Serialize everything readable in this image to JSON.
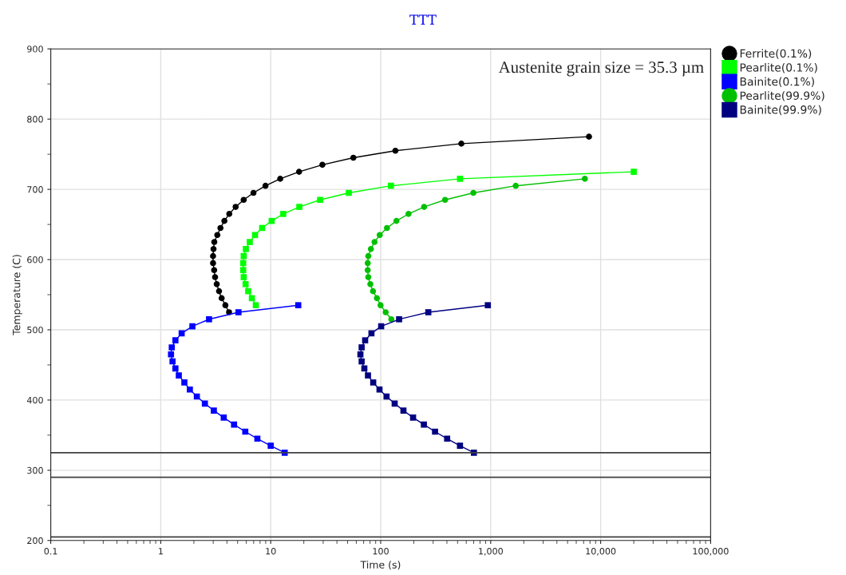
{
  "chart_data": {
    "type": "line",
    "title": "TTT",
    "xlabel": "Time (s)",
    "ylabel": "Temperature (C)",
    "annotations": [
      "Austenite grain size = 35.3 µm"
    ],
    "log": "x",
    "xlim": [
      0.1,
      100000
    ],
    "xticks": [
      0.1,
      1,
      10,
      100,
      {
        "value": 1000,
        "label": "1,000"
      },
      {
        "value": 10000,
        "label": "10,000"
      },
      {
        "value": 100000,
        "label": "100,000"
      }
    ],
    "ylim": [
      200,
      900
    ],
    "yticks": [
      200,
      {
        "value": 250,
        "label": null
      },
      300,
      {
        "value": 350,
        "label": null
      },
      400,
      {
        "value": 450,
        "label": null
      },
      500,
      {
        "value": 550,
        "label": null
      },
      600,
      {
        "value": 650,
        "label": null
      },
      700,
      {
        "value": 750,
        "label": null
      },
      800,
      {
        "value": 850,
        "label": null
      },
      900
    ],
    "grid": true,
    "legend": "right",
    "ref_lines": [
      {
        "axis": "y",
        "value": 325,
        "color": "#404040"
      },
      {
        "axis": "y",
        "value": 290,
        "color": "#404040"
      },
      {
        "axis": "y",
        "value": 205,
        "color": "#404040"
      }
    ],
    "series": [
      {
        "name": "Ferrite(0.1%)",
        "color": "#000000",
        "marker": "circle",
        "x": [
          4.18,
          3.87,
          3.58,
          3.39,
          3.23,
          3.12,
          3.06,
          2.99,
          2.99,
          3.02,
          3.07,
          3.27,
          3.49,
          3.79,
          4.2,
          4.8,
          5.68,
          6.97,
          8.96,
          12.2,
          18.1,
          29.5,
          56.4,
          136,
          541,
          7830
        ],
        "values": [
          525,
          535,
          545,
          555,
          565,
          575,
          585,
          595,
          605,
          615,
          625,
          635,
          645,
          655,
          665,
          675,
          685,
          695,
          705,
          715,
          725,
          735,
          745,
          755,
          765,
          775
        ]
      },
      {
        "name": "Pearlite(0.1%)",
        "color": "#00ff00",
        "marker": "square",
        "x": [
          7.32,
          6.74,
          6.24,
          5.91,
          5.68,
          5.62,
          5.62,
          5.68,
          5.94,
          6.45,
          7.2,
          8.35,
          10.2,
          13.0,
          18.2,
          28.1,
          51.3,
          124,
          526,
          20000
        ],
        "values": [
          535,
          545,
          555,
          565,
          575,
          585,
          595,
          605,
          615,
          625,
          635,
          645,
          655,
          665,
          675,
          685,
          695,
          705,
          715,
          725
        ]
      },
      {
        "name": "Bainite(0.1%)",
        "color": "#0000ff",
        "marker": "square",
        "x": [
          17.8,
          5.09,
          2.75,
          1.94,
          1.55,
          1.36,
          1.26,
          1.24,
          1.28,
          1.36,
          1.46,
          1.64,
          1.84,
          2.13,
          2.52,
          3.04,
          3.74,
          4.64,
          5.87,
          7.56,
          10.0,
          13.4
        ],
        "values": [
          535,
          525,
          515,
          505,
          495,
          485,
          475,
          465,
          455,
          445,
          435,
          425,
          415,
          405,
          395,
          385,
          375,
          365,
          355,
          345,
          335,
          325
        ]
      },
      {
        "name": "Pearlite(99.9%)",
        "color": "#00c000",
        "marker": "circle",
        "x": [
          125,
          111,
          99.7,
          92.4,
          85.1,
          80.5,
          77.1,
          76.2,
          76.2,
          77.1,
          81.4,
          87.9,
          98.0,
          114,
          139,
          179,
          248,
          385,
          696,
          1690,
          7180
        ],
        "values": [
          515,
          525,
          535,
          545,
          555,
          565,
          575,
          585,
          595,
          605,
          615,
          625,
          635,
          645,
          655,
          665,
          675,
          685,
          695,
          705,
          715
        ]
      },
      {
        "name": "Bainite(99.9%)",
        "color": "#000080",
        "marker": "square",
        "x": [
          942,
          271,
          147,
          101,
          82.4,
          72.2,
          67.1,
          65.4,
          67.1,
          71.0,
          76.6,
          85.5,
          97.5,
          113,
          134,
          161,
          197,
          247,
          312,
          402,
          526,
          704
        ],
        "values": [
          535,
          525,
          515,
          505,
          495,
          485,
          475,
          465,
          455,
          445,
          435,
          425,
          415,
          405,
          395,
          385,
          375,
          365,
          355,
          345,
          335,
          325
        ]
      }
    ]
  }
}
